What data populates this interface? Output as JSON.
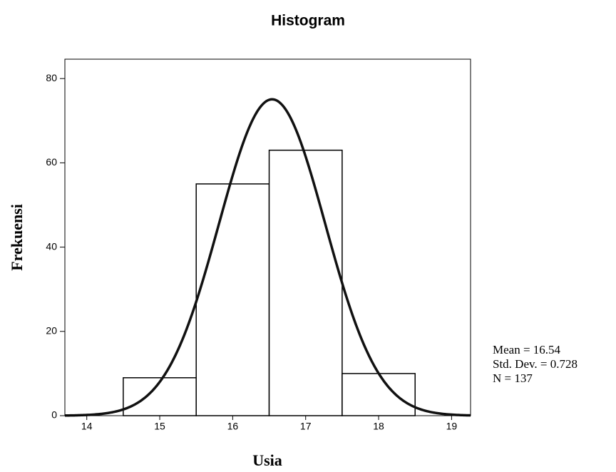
{
  "chart_data": {
    "type": "histogram",
    "title": "Histogram",
    "x_label": "Usia",
    "y_label": "Frekuensi",
    "bins": [
      14.5,
      15.5,
      16.5,
      17.5,
      18.5
    ],
    "values": [
      9,
      55,
      63,
      10
    ],
    "color": "#ffffff",
    "edge_color": "#000000",
    "curve_color": "#111111",
    "xlim": [
      13.7,
      19.26
    ],
    "ylim": [
      0,
      84.6
    ],
    "xticks": [
      14,
      15,
      16,
      17,
      18,
      19
    ],
    "yticks": [
      0,
      20,
      40,
      60,
      80
    ],
    "stats": [
      {
        "label": "Mean = 16.54",
        "value": 16.54
      },
      {
        "label": "Std. Dev. = 0.728",
        "value": 0.728
      },
      {
        "label": "N = 137",
        "value": 137
      }
    ]
  }
}
